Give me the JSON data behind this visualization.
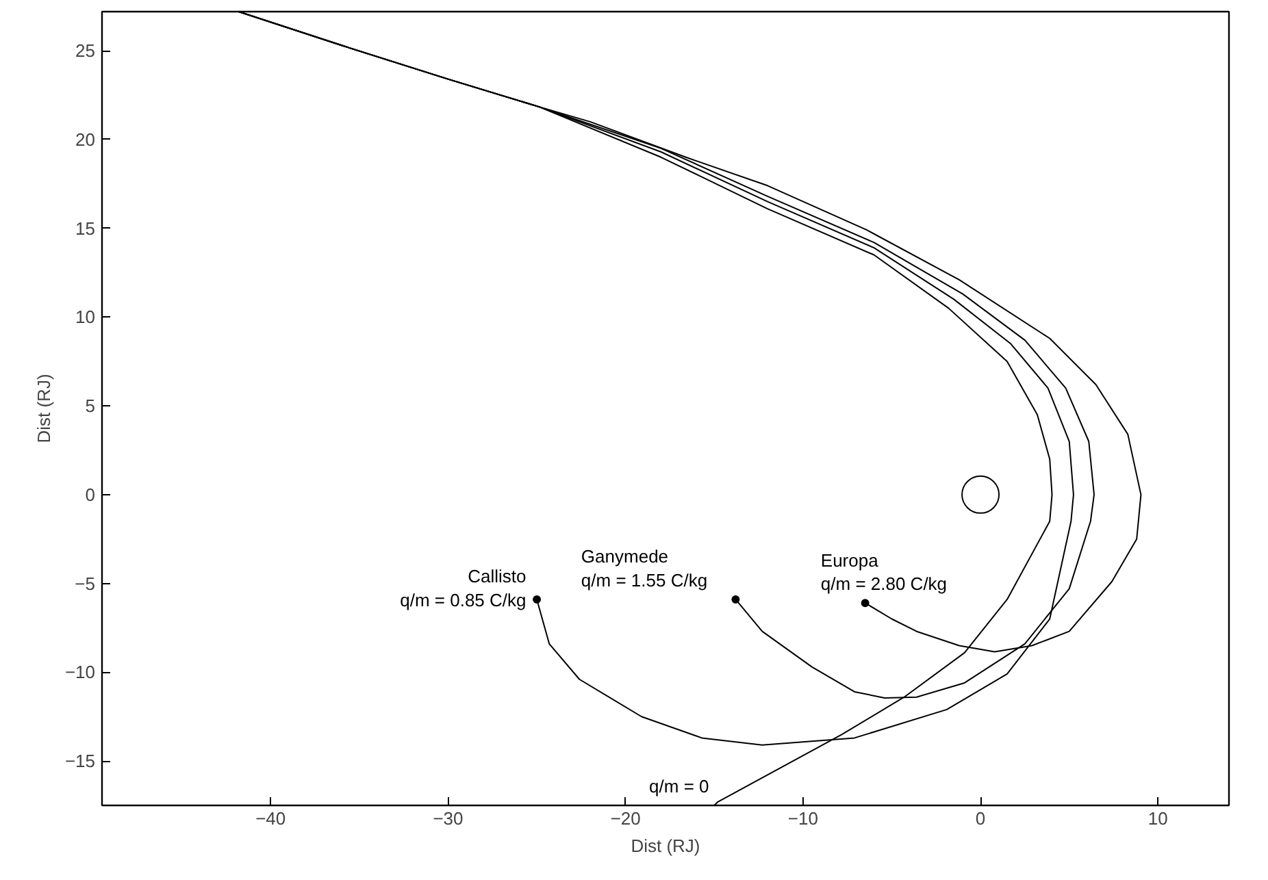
{
  "chart_data": {
    "type": "line",
    "xlabel": "Dist (RJ)",
    "ylabel": "Dist (RJ)",
    "xlim": [
      -49.5,
      14
    ],
    "ylim": [
      -17.5,
      27.2
    ],
    "xticks": [
      -40,
      -30,
      -20,
      -10,
      0,
      10
    ],
    "yticks": [
      -15,
      -10,
      -5,
      0,
      5,
      10,
      15,
      20,
      25
    ],
    "grid": false,
    "line_style": "solid",
    "series": [
      {
        "color": "#000000",
        "x": [
          -6.5,
          -5,
          -3.6,
          -1.2,
          0.8,
          2.9,
          5.0,
          7.4,
          8.8,
          9.04,
          8.3,
          6.5,
          3.9,
          -1.2,
          -6.4,
          -12,
          -16.6,
          -22,
          -24.9,
          -30,
          -36,
          -41.8
        ],
        "values": [
          -6.1,
          -7.0,
          -7.7,
          -8.5,
          -8.85,
          -8.5,
          -7.7,
          -4.9,
          -2.5,
          0,
          3.4,
          6.2,
          8.8,
          12.1,
          14.9,
          17.4,
          19.0,
          21.0,
          21.85,
          23.4,
          25.3,
          27.2
        ]
      },
      {
        "color": "#000000",
        "x": [
          -13.8,
          -12.3,
          -9.5,
          -7.1,
          -5.4,
          -3.6,
          -0.9,
          2.5,
          5.0,
          6.2,
          6.4,
          6.1,
          4.8,
          2.5,
          -1,
          -6,
          -12,
          -18,
          -24.9,
          -30,
          -36,
          -41.8
        ],
        "values": [
          -5.9,
          -7.7,
          -9.7,
          -11.1,
          -11.45,
          -11.4,
          -10.6,
          -8.4,
          -5.3,
          -1.5,
          0,
          3,
          6,
          8.7,
          11.3,
          14.2,
          16.8,
          19.5,
          21.85,
          23.4,
          25.3,
          27.2
        ]
      },
      {
        "color": "#000000",
        "x": [
          -25.0,
          -24.3,
          -22.6,
          -19.1,
          -15.7,
          -12.3,
          -7.1,
          -1.9,
          1.5,
          3.9,
          5.1,
          5.24,
          5.0,
          3.8,
          1.7,
          -1.5,
          -6,
          -12,
          -18,
          -24.9,
          -30,
          -36,
          -41.8
        ],
        "values": [
          -5.9,
          -8.4,
          -10.4,
          -12.5,
          -13.7,
          -14.1,
          -13.7,
          -12.1,
          -10.1,
          -7.0,
          -1.5,
          0,
          3,
          6,
          8.5,
          11,
          13.9,
          16.5,
          19.3,
          21.85,
          23.4,
          25.3,
          27.2
        ]
      },
      {
        "color": "#000000",
        "x": [
          -15.0,
          -14.8,
          -7.8,
          -4.3,
          -0.9,
          1.5,
          3.9,
          4.03,
          3.9,
          3.2,
          1.5,
          -1.8,
          -6,
          -12,
          -18,
          -24.9,
          -30,
          -36,
          -41.8
        ],
        "values": [
          -17.5,
          -17.3,
          -13.5,
          -11.4,
          -8.9,
          -5.9,
          -1.5,
          0,
          2,
          4.5,
          7.5,
          10.5,
          13.5,
          16.1,
          19.0,
          21.85,
          23.4,
          25.3,
          27.2
        ]
      },
      {
        "type": "scatter",
        "color": "#000000",
        "x": [
          0
        ],
        "values": [
          0
        ]
      }
    ],
    "annotations": [
      {
        "text": "Callisto\nq/m = 0.85 C/kg",
        "x": -25.0,
        "y": -5.9
      },
      {
        "text": "Ganymede\nq/m = 1.55 C/kg",
        "x": -13.8,
        "y": -5.9
      },
      {
        "text": "Europa\nq/m = 2.80 C/kg",
        "x": -6.5,
        "y": -6.1
      },
      {
        "text": "q/m = 0",
        "x": -15.0,
        "y": -17.0
      }
    ]
  }
}
